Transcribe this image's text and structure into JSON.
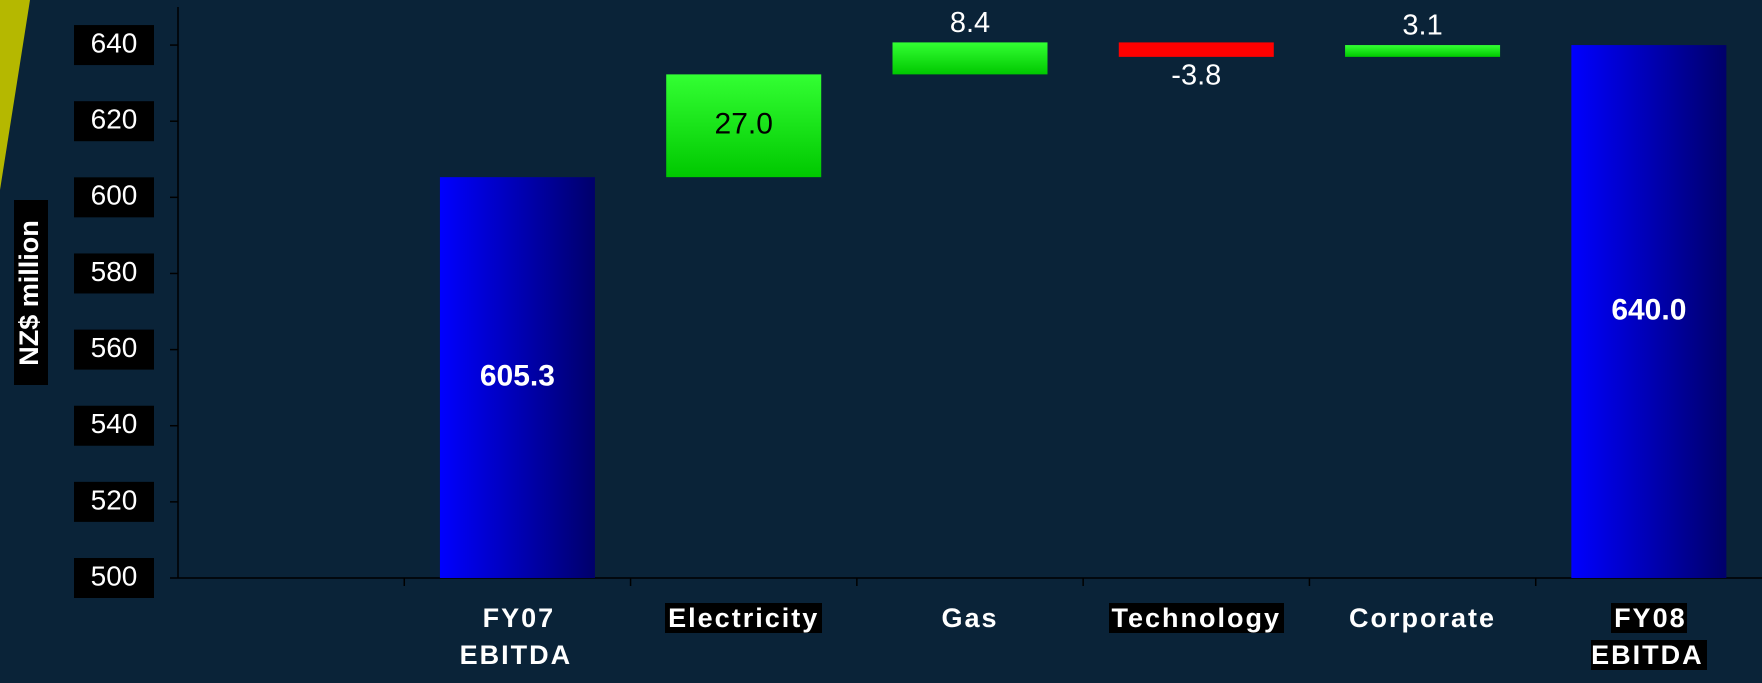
{
  "chart_data": {
    "type": "waterfall",
    "y_axis_label": "NZ$ million",
    "categories": [
      null,
      "FY07 EBITDA",
      "Electricity",
      "Gas",
      "Technology",
      "Corporate",
      "FY08 EBITDA"
    ],
    "values": [
      null,
      605.3,
      27.0,
      8.4,
      -3.8,
      3.1,
      640.0
    ],
    "value_labels": [
      null,
      "605.3",
      "27.0",
      "8.4",
      "-3.8",
      "3.1",
      "640.0"
    ],
    "colors": {
      "total": "#0000ff",
      "increase": "#00ff00",
      "decrease": "#ff0000"
    },
    "ylim": [
      500,
      650
    ],
    "yticks": [
      500,
      520,
      540,
      560,
      580,
      600,
      620,
      640
    ]
  }
}
